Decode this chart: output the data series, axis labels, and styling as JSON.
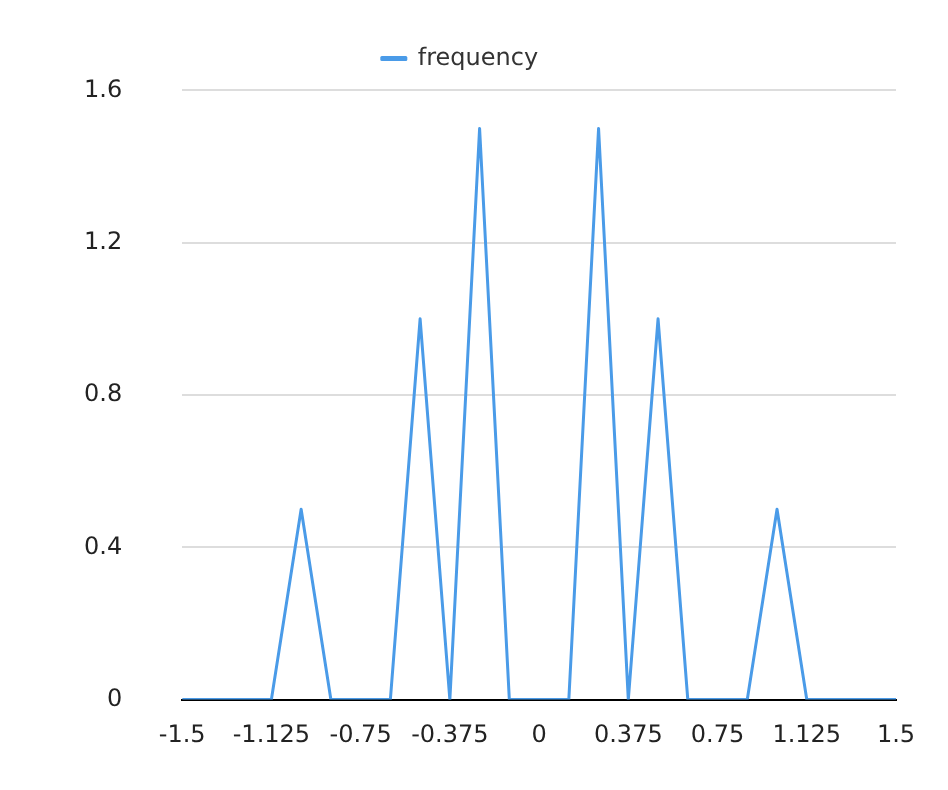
{
  "chart_data": {
    "type": "line",
    "x": [
      -1.5,
      -1.375,
      -1.25,
      -1.125,
      -1,
      -0.875,
      -0.75,
      -0.625,
      -0.5,
      -0.375,
      -0.25,
      -0.125,
      0,
      0.125,
      0.25,
      0.375,
      0.5,
      0.625,
      0.75,
      0.875,
      1,
      1.125,
      1.25,
      1.375,
      1.5
    ],
    "series": [
      {
        "name": "frequency",
        "color": "#4a9be8",
        "values": [
          0,
          0,
          0,
          0,
          0.5,
          0,
          0,
          0,
          1,
          0,
          1.5,
          0,
          0,
          0,
          1.5,
          0,
          1,
          0,
          0,
          0,
          0.5,
          0,
          0,
          0,
          0
        ]
      }
    ],
    "xlim": [
      -1.5,
      1.5
    ],
    "xticks": [
      -1.5,
      -1.125,
      -0.75,
      -0.375,
      0,
      0.375,
      0.75,
      1.125,
      1.5
    ],
    "ylim": [
      0,
      1.6
    ],
    "yticks": [
      0,
      0.4,
      0.8,
      1.2,
      1.6
    ],
    "grid": "y",
    "legend": "top",
    "marker": "none",
    "line_style": "solid"
  }
}
